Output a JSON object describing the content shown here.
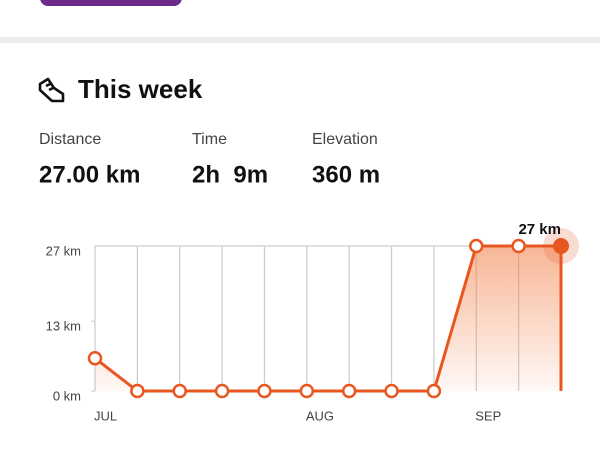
{
  "section": {
    "title": "This week",
    "stats": [
      {
        "label": "Distance",
        "value": "27.00 km"
      },
      {
        "label": "Time",
        "value": "2h  9m"
      },
      {
        "label": "Elevation",
        "value": "360 m"
      }
    ]
  },
  "chart_data": {
    "type": "line",
    "categories": [
      "JUL",
      null,
      null,
      null,
      null,
      "AUG",
      null,
      null,
      null,
      "SEP",
      null,
      null
    ],
    "values": [
      6.1,
      0,
      0,
      0,
      0,
      0,
      0,
      0,
      0,
      27,
      27,
      27
    ],
    "value_labels": [
      null,
      null,
      null,
      null,
      null,
      null,
      null,
      null,
      null,
      null,
      null,
      "27 km"
    ],
    "color": "#e8571f",
    "ylim": [
      0,
      27
    ],
    "yticks": [
      {
        "value": 0,
        "label": "0 km"
      },
      {
        "value": 13,
        "label": "13 km"
      },
      {
        "value": 27,
        "label": "27 km"
      }
    ],
    "grid": true
  }
}
